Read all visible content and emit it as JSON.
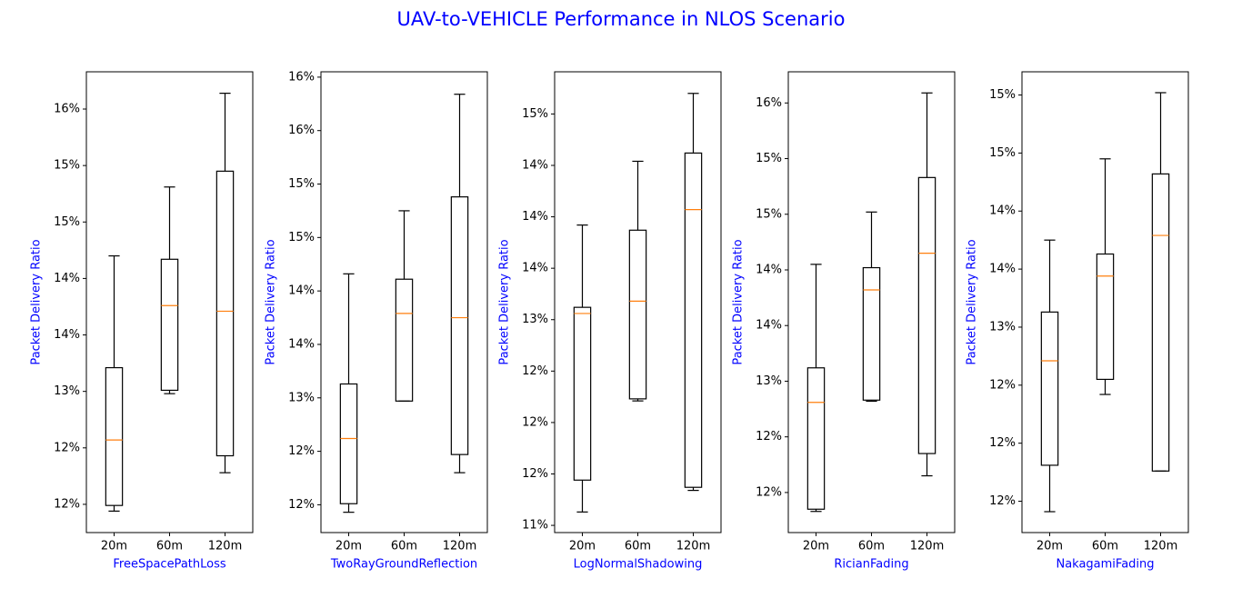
{
  "title": "UAV-to-VEHICLE Performance in NLOS Scenario",
  "chart_data": [
    {
      "type": "box",
      "xlabel": "FreeSpacePathLoss",
      "ylabel": "Packet Delivery Ratio",
      "categories": [
        "20m",
        "60m",
        "120m"
      ],
      "color": "#000000",
      "median_color": "#ff7f0e",
      "boxes": [
        {
          "whislo": 11.94,
          "q1": 11.99,
          "med": 12.57,
          "q3": 13.21,
          "whishi": 14.2
        },
        {
          "whislo": 12.98,
          "q1": 13.01,
          "med": 13.76,
          "q3": 14.17,
          "whishi": 14.81
        },
        {
          "whislo": 12.28,
          "q1": 12.43,
          "med": 13.71,
          "q3": 14.95,
          "whishi": 15.64
        }
      ],
      "ylim": [
        11.75,
        15.83
      ],
      "yticks": [
        {
          "value": 12.0,
          "label": "12%"
        },
        {
          "value": 12.5,
          "label": "12%"
        },
        {
          "value": 13.0,
          "label": "13%"
        },
        {
          "value": 13.5,
          "label": "14%"
        },
        {
          "value": 14.0,
          "label": "14%"
        },
        {
          "value": 14.5,
          "label": "15%"
        },
        {
          "value": 15.0,
          "label": "15%"
        },
        {
          "value": 15.5,
          "label": "16%"
        }
      ]
    },
    {
      "type": "box",
      "xlabel": "TwoRayGroundReflection",
      "ylabel": "Packet Delivery Ratio",
      "categories": [
        "20m",
        "60m",
        "120m"
      ],
      "color": "#000000",
      "median_color": "#ff7f0e",
      "boxes": [
        {
          "whislo": 11.93,
          "q1": 12.01,
          "med": 12.62,
          "q3": 13.13,
          "whishi": 14.16
        },
        {
          "whislo": 12.97,
          "q1": 12.97,
          "med": 13.79,
          "q3": 14.11,
          "whishi": 14.75
        },
        {
          "whislo": 12.3,
          "q1": 12.47,
          "med": 13.75,
          "q3": 14.88,
          "whishi": 15.84
        }
      ],
      "ylim": [
        11.74,
        16.05
      ],
      "yticks": [
        {
          "value": 12.0,
          "label": "12%"
        },
        {
          "value": 12.5,
          "label": "12%"
        },
        {
          "value": 13.0,
          "label": "13%"
        },
        {
          "value": 13.5,
          "label": "14%"
        },
        {
          "value": 14.0,
          "label": "14%"
        },
        {
          "value": 14.5,
          "label": "15%"
        },
        {
          "value": 15.0,
          "label": "15%"
        },
        {
          "value": 15.5,
          "label": "16%"
        },
        {
          "value": 16.0,
          "label": "16%"
        }
      ]
    },
    {
      "type": "box",
      "xlabel": "LogNormalShadowing",
      "ylabel": "Packet Delivery Ratio",
      "categories": [
        "20m",
        "60m",
        "120m"
      ],
      "color": "#000000",
      "median_color": "#ff7f0e",
      "boxes": [
        {
          "whislo": 11.13,
          "q1": 11.44,
          "med": 13.06,
          "q3": 13.12,
          "whishi": 13.92
        },
        {
          "whislo": 12.21,
          "q1": 12.23,
          "med": 13.18,
          "q3": 13.87,
          "whishi": 14.54
        },
        {
          "whislo": 11.34,
          "q1": 11.37,
          "med": 14.07,
          "q3": 14.62,
          "whishi": 15.2
        }
      ],
      "ylim": [
        10.93,
        15.41
      ],
      "yticks": [
        {
          "value": 11.0,
          "label": "11%"
        },
        {
          "value": 11.5,
          "label": "12%"
        },
        {
          "value": 12.0,
          "label": "12%"
        },
        {
          "value": 12.5,
          "label": "12%"
        },
        {
          "value": 13.0,
          "label": "13%"
        },
        {
          "value": 13.5,
          "label": "14%"
        },
        {
          "value": 14.0,
          "label": "14%"
        },
        {
          "value": 14.5,
          "label": "14%"
        },
        {
          "value": 15.0,
          "label": "15%"
        }
      ]
    },
    {
      "type": "box",
      "xlabel": "RicianFading",
      "ylabel": "Packet Delivery Ratio",
      "categories": [
        "20m",
        "60m",
        "120m"
      ],
      "color": "#000000",
      "median_color": "#ff7f0e",
      "boxes": [
        {
          "whislo": 11.83,
          "q1": 11.85,
          "med": 12.81,
          "q3": 13.12,
          "whishi": 14.05
        },
        {
          "whislo": 12.82,
          "q1": 12.83,
          "med": 13.82,
          "q3": 14.02,
          "whishi": 14.52
        },
        {
          "whislo": 12.15,
          "q1": 12.35,
          "med": 14.15,
          "q3": 14.83,
          "whishi": 15.59
        }
      ],
      "ylim": [
        11.64,
        15.78
      ],
      "yticks": [
        {
          "value": 12.0,
          "label": "12%"
        },
        {
          "value": 12.5,
          "label": "12%"
        },
        {
          "value": 13.0,
          "label": "13%"
        },
        {
          "value": 13.5,
          "label": "14%"
        },
        {
          "value": 14.0,
          "label": "14%"
        },
        {
          "value": 14.5,
          "label": "15%"
        },
        {
          "value": 15.0,
          "label": "15%"
        },
        {
          "value": 15.5,
          "label": "16%"
        }
      ]
    },
    {
      "type": "box",
      "xlabel": "NakagamiFading",
      "ylabel": "Packet Delivery Ratio",
      "categories": [
        "20m",
        "60m",
        "120m"
      ],
      "color": "#000000",
      "median_color": "#ff7f0e",
      "boxes": [
        {
          "whislo": 11.41,
          "q1": 11.81,
          "med": 12.71,
          "q3": 13.13,
          "whishi": 13.75
        },
        {
          "whislo": 12.42,
          "q1": 12.55,
          "med": 13.44,
          "q3": 13.63,
          "whishi": 14.45
        },
        {
          "whislo": 11.76,
          "q1": 11.76,
          "med": 13.79,
          "q3": 14.32,
          "whishi": 15.02
        }
      ],
      "ylim": [
        11.23,
        15.2
      ],
      "yticks": [
        {
          "value": 11.5,
          "label": "12%"
        },
        {
          "value": 12.0,
          "label": "12%"
        },
        {
          "value": 12.5,
          "label": "12%"
        },
        {
          "value": 13.0,
          "label": "13%"
        },
        {
          "value": 13.5,
          "label": "14%"
        },
        {
          "value": 14.0,
          "label": "14%"
        },
        {
          "value": 14.5,
          "label": "15%"
        },
        {
          "value": 15.0,
          "label": "15%"
        }
      ]
    }
  ]
}
